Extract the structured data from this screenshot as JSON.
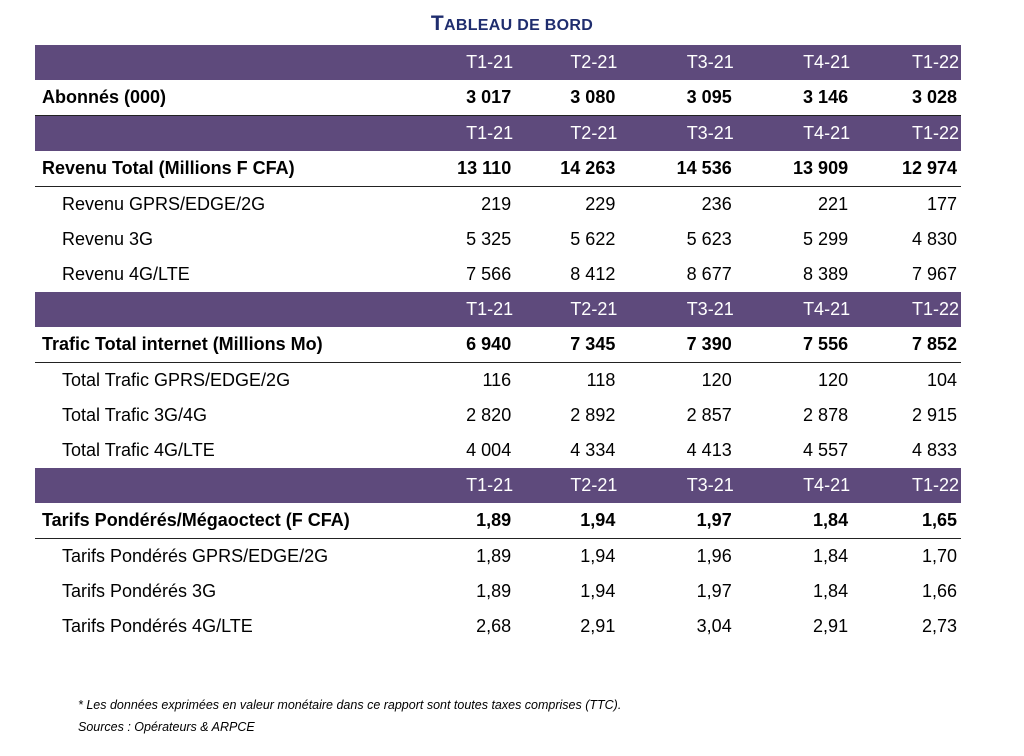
{
  "title_initial": "T",
  "title_rest": "ABLEAU DE BORD",
  "quarters": [
    "T1-21",
    "T2-21",
    "T3-21",
    "T4-21",
    "T1-22"
  ],
  "sections": [
    {
      "label": "Abonnés (000)",
      "values": [
        "3 017",
        "3 080",
        "3 095",
        "3 146",
        "3 028"
      ],
      "rows": []
    },
    {
      "label": "Revenu Total (Millions F CFA)",
      "values": [
        "13 110",
        "14 263",
        "14 536",
        "13 909",
        "12 974"
      ],
      "rows": [
        {
          "label": "Revenu GPRS/EDGE/2G",
          "values": [
            "219",
            "229",
            "236",
            "221",
            "177"
          ]
        },
        {
          "label": "Revenu 3G",
          "values": [
            "5 325",
            "5 622",
            "5 623",
            "5 299",
            "4 830"
          ]
        },
        {
          "label": "Revenu 4G/LTE",
          "values": [
            "7 566",
            "8 412",
            "8 677",
            "8 389",
            "7 967"
          ]
        }
      ]
    },
    {
      "label": "Trafic Total internet (Millions Mo)",
      "values": [
        "6 940",
        "7 345",
        "7 390",
        "7 556",
        "7 852"
      ],
      "rows": [
        {
          "label": "Total Trafic GPRS/EDGE/2G",
          "values": [
            "116",
            "118",
            "120",
            "120",
            "104"
          ]
        },
        {
          "label": "Total Trafic 3G/4G",
          "values": [
            "2 820",
            "2 892",
            "2 857",
            "2 878",
            "2 915"
          ]
        },
        {
          "label": "Total Trafic 4G/LTE",
          "values": [
            "4 004",
            "4 334",
            "4 413",
            "4 557",
            "4 833"
          ]
        }
      ]
    },
    {
      "label": "Tarifs Pondérés/Mégaoctect (F CFA)",
      "values": [
        "1,89",
        "1,94",
        "1,97",
        "1,84",
        "1,65"
      ],
      "rows": [
        {
          "label": "Tarifs Pondérés GPRS/EDGE/2G",
          "values": [
            "1,89",
            "1,94",
            "1,96",
            "1,84",
            "1,70"
          ]
        },
        {
          "label": "Tarifs Pondérés 3G",
          "values": [
            "1,89",
            "1,94",
            "1,97",
            "1,84",
            "1,66"
          ]
        },
        {
          "label": "Tarifs Pondérés 4G/LTE",
          "values": [
            "2,68",
            "2,91",
            "3,04",
            "2,91",
            "2,73"
          ]
        }
      ]
    }
  ],
  "footnote": "*   Les données exprimées en valeur monétaire dans ce rapport sont toutes taxes comprises (TTC).",
  "sources": "Sources : Opérateurs & ARPCE",
  "colors": {
    "header_bg": "#5e4a7c",
    "title": "#1f2d6e"
  }
}
